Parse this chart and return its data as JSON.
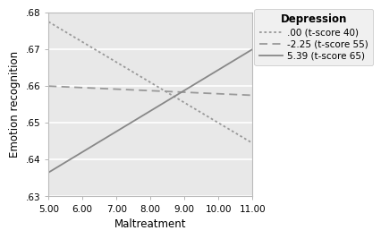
{
  "title": "Depression",
  "xlabel": "Maltreatment",
  "ylabel": "Emotion recognition",
  "xlim": [
    5.0,
    11.0
  ],
  "ylim": [
    0.63,
    0.68
  ],
  "xticks": [
    5.0,
    6.0,
    7.0,
    8.0,
    9.0,
    10.0,
    11.0
  ],
  "yticks": [
    0.63,
    0.64,
    0.65,
    0.66,
    0.67,
    0.68
  ],
  "ytick_labels": [
    ".63",
    ".64",
    ".65",
    ".66",
    ".67",
    ".68"
  ],
  "xtick_labels": [
    "5.00",
    "6.00",
    "7.00",
    "8.00",
    "9.00",
    "10.00",
    "11.00"
  ],
  "lines": [
    {
      "label": ".00 (t-score 40)",
      "x": [
        5.0,
        11.0
      ],
      "y": [
        0.6775,
        0.6445
      ],
      "linestyle": "dotted",
      "color": "#999999",
      "linewidth": 1.3
    },
    {
      "label": "-2.25 (t-score 55)",
      "x": [
        5.0,
        11.0
      ],
      "y": [
        0.66,
        0.6575
      ],
      "linestyle": "dashed",
      "color": "#999999",
      "linewidth": 1.3
    },
    {
      "label": "5.39 (t-score 65)",
      "x": [
        5.0,
        11.0
      ],
      "y": [
        0.6365,
        0.67
      ],
      "linestyle": "solid",
      "color": "#888888",
      "linewidth": 1.3
    }
  ],
  "figure_bg": "#ffffff",
  "plot_bg": "#e8e8e8",
  "grid_color": "#ffffff",
  "legend_bg": "#f0f0f0",
  "legend_title_fontsize": 8.5,
  "legend_fontsize": 7.5,
  "axis_label_fontsize": 8.5,
  "tick_fontsize": 7.5
}
